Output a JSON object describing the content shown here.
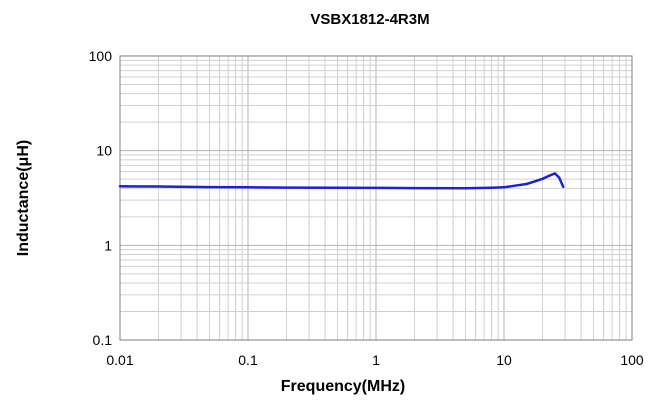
{
  "chart_data": {
    "type": "line",
    "title": "VSBX1812-4R3M",
    "xlabel": "Frequency(MHz)",
    "ylabel": "Inductance(μH)",
    "x_scale": "log",
    "y_scale": "log",
    "xlim": [
      0.01,
      100
    ],
    "ylim": [
      0.1,
      100
    ],
    "x_ticks": [
      "0.01",
      "0.1",
      "1",
      "10",
      "100"
    ],
    "y_ticks": [
      "0.1",
      "1",
      "10",
      "100"
    ],
    "grid": true,
    "legend": "none",
    "series": [
      {
        "color": "#1f1fd6",
        "x": [
          0.01,
          0.02,
          0.05,
          0.1,
          0.2,
          0.5,
          1,
          2,
          5,
          8,
          10,
          12,
          15,
          18,
          20,
          22,
          25,
          27,
          29
        ],
        "y": [
          4.2,
          4.18,
          4.12,
          4.1,
          4.07,
          4.05,
          4.04,
          4.02,
          4.0,
          4.05,
          4.1,
          4.25,
          4.45,
          4.8,
          5.05,
          5.35,
          5.75,
          5.2,
          4.15
        ]
      }
    ]
  }
}
